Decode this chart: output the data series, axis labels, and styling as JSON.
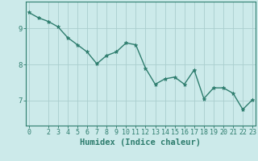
{
  "x": [
    0,
    1,
    2,
    3,
    4,
    5,
    6,
    7,
    8,
    9,
    10,
    11,
    12,
    13,
    14,
    15,
    16,
    17,
    18,
    19,
    20,
    21,
    22,
    23
  ],
  "y": [
    9.45,
    9.3,
    9.2,
    9.05,
    8.75,
    8.55,
    8.35,
    8.02,
    8.25,
    8.35,
    8.6,
    8.55,
    7.9,
    7.45,
    7.6,
    7.65,
    7.45,
    7.85,
    7.05,
    7.35,
    7.35,
    7.2,
    6.75,
    7.02
  ],
  "line_color": "#2e7d6e",
  "marker": "*",
  "marker_size": 3.5,
  "bg_color": "#cceaea",
  "grid_color": "#aacece",
  "axis_color": "#2e7d6e",
  "xlabel": "Humidex (Indice chaleur)",
  "xlabel_fontsize": 7.5,
  "yticks": [
    7,
    8,
    9
  ],
  "xticks": [
    0,
    2,
    3,
    4,
    5,
    6,
    7,
    8,
    9,
    10,
    11,
    12,
    13,
    14,
    15,
    16,
    17,
    18,
    19,
    20,
    21,
    22,
    23
  ],
  "xlim": [
    -0.3,
    23.3
  ],
  "ylim": [
    6.3,
    9.75
  ],
  "tick_fontsize": 6,
  "tick_color": "#2e7d6e",
  "line_width": 1.0
}
